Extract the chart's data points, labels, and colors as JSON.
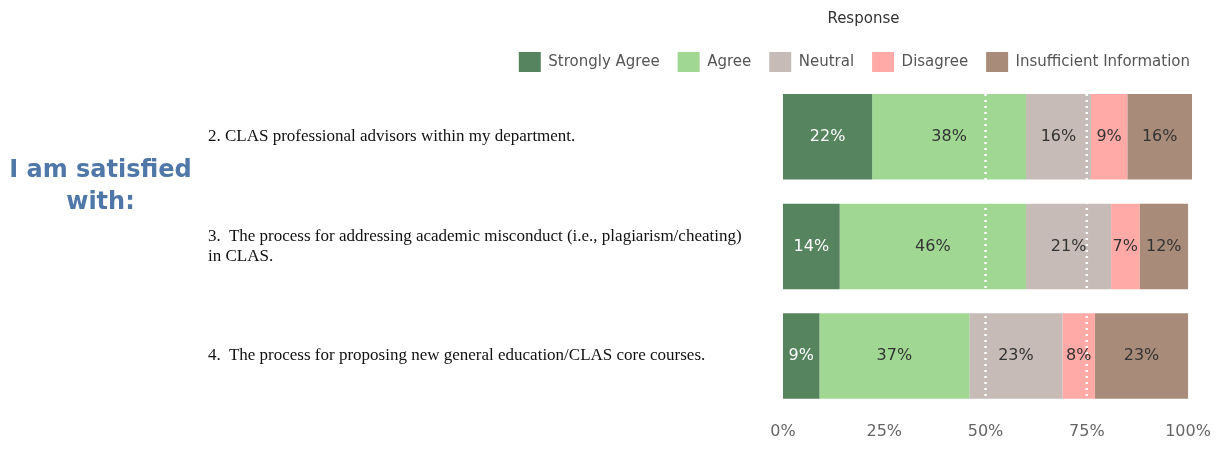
{
  "chart_data": {
    "type": "bar",
    "orientation": "horizontal",
    "stacked": true,
    "title": "I am satisfied with:",
    "legend_title": "Response",
    "legend": "top",
    "grid": false,
    "categories": [
      "2. CLAS professional advisors within my department.",
      "3.  The process for addressing academic misconduct (i.e., plagiarism/cheating) in CLAS.",
      "4.  The process for proposing new general education/CLAS core courses."
    ],
    "series": [
      {
        "name": "Strongly Agree",
        "color": "#55845f",
        "values": [
          22,
          14,
          9
        ],
        "value_labels": [
          "22%",
          "14%",
          "9%"
        ]
      },
      {
        "name": "Agree",
        "color": "#a0d893",
        "values": [
          38,
          46,
          37
        ],
        "value_labels": [
          "38%",
          "46%",
          "37%"
        ]
      },
      {
        "name": "Neutral",
        "color": "#c6bbb7",
        "values": [
          16,
          21,
          23
        ],
        "value_labels": [
          "16%",
          "21%",
          "23%"
        ]
      },
      {
        "name": "Disagree",
        "color": "#ffaaa6",
        "values": [
          9,
          7,
          8
        ],
        "value_labels": [
          "9%",
          "7%",
          "8%"
        ]
      },
      {
        "name": "Insufficient Information",
        "color": "#a98b7a",
        "values": [
          16,
          12,
          23
        ],
        "value_labels": [
          "16%",
          "12%",
          "23%"
        ]
      }
    ],
    "xlim": [
      0,
      101
    ],
    "xticks": [
      {
        "value": 0,
        "label": "0%"
      },
      {
        "value": 25,
        "label": "25%"
      },
      {
        "value": 50,
        "label": "50%"
      },
      {
        "value": 75,
        "label": "75%"
      },
      {
        "value": 100,
        "label": "100%"
      }
    ],
    "ref_lines": [
      {
        "axis": "x",
        "value": 50,
        "color": "#ffffff",
        "line_style": "dotted"
      },
      {
        "axis": "x",
        "value": 75,
        "color": "#ffffff",
        "line_style": "dotted"
      }
    ]
  }
}
